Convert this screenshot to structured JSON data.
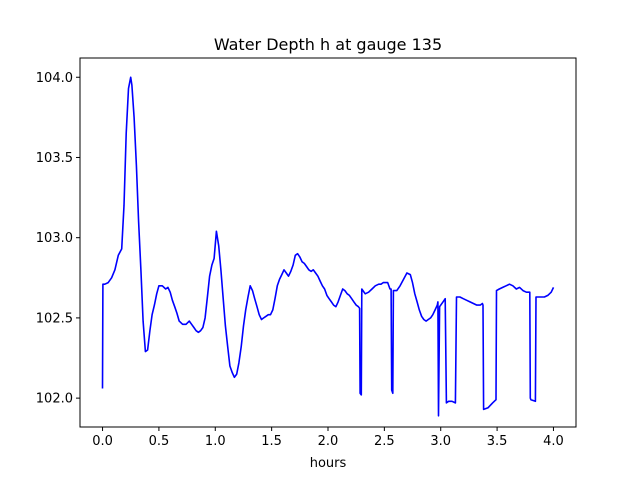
{
  "chart_data": {
    "type": "line",
    "title": "Water Depth h at gauge 135",
    "xlabel": "hours",
    "ylabel": "",
    "xlim": [
      -0.2,
      4.2
    ],
    "ylim": [
      101.82,
      104.12
    ],
    "xticks": [
      "0.0",
      "0.5",
      "1.0",
      "1.5",
      "2.0",
      "2.5",
      "3.0",
      "3.5",
      "4.0"
    ],
    "yticks": [
      "102.0",
      "102.5",
      "103.0",
      "103.5",
      "104.0"
    ],
    "grid": false,
    "colors": {
      "line": "#0000ff",
      "axes": "#000000",
      "background": "#ffffff"
    },
    "series": [
      {
        "x": [
          0.0,
          0.003,
          0.02,
          0.05,
          0.08,
          0.11,
          0.14,
          0.17,
          0.19,
          0.21,
          0.23,
          0.25,
          0.26,
          0.28,
          0.3,
          0.32,
          0.34,
          0.36,
          0.38,
          0.4,
          0.42,
          0.44,
          0.46,
          0.48,
          0.5,
          0.53,
          0.56,
          0.58,
          0.6,
          0.62,
          0.64,
          0.66,
          0.68,
          0.71,
          0.74,
          0.77,
          0.79,
          0.81,
          0.83,
          0.85,
          0.87,
          0.89,
          0.91,
          0.93,
          0.95,
          0.97,
          0.99,
          1.01,
          1.03,
          1.05,
          1.07,
          1.09,
          1.11,
          1.13,
          1.15,
          1.17,
          1.19,
          1.21,
          1.23,
          1.25,
          1.27,
          1.29,
          1.31,
          1.33,
          1.35,
          1.37,
          1.39,
          1.41,
          1.43,
          1.45,
          1.47,
          1.49,
          1.51,
          1.53,
          1.55,
          1.57,
          1.59,
          1.61,
          1.63,
          1.65,
          1.67,
          1.69,
          1.71,
          1.73,
          1.75,
          1.77,
          1.79,
          1.81,
          1.83,
          1.85,
          1.87,
          1.89,
          1.91,
          1.93,
          1.95,
          1.97,
          1.99,
          2.01,
          2.03,
          2.05,
          2.07,
          2.09,
          2.11,
          2.13,
          2.15,
          2.17,
          2.19,
          2.21,
          2.23,
          2.25,
          2.27,
          2.28,
          2.285,
          2.295,
          2.3,
          2.33,
          2.36,
          2.39,
          2.42,
          2.45,
          2.47,
          2.49,
          2.51,
          2.53,
          2.55,
          2.56,
          2.565,
          2.575,
          2.58,
          2.61,
          2.64,
          2.67,
          2.7,
          2.73,
          2.75,
          2.77,
          2.79,
          2.81,
          2.83,
          2.85,
          2.87,
          2.89,
          2.91,
          2.93,
          2.95,
          2.97,
          2.975,
          2.98,
          2.99,
          3.02,
          3.04,
          3.05,
          3.07,
          3.1,
          3.13,
          3.14,
          3.145,
          3.17,
          3.2,
          3.23,
          3.26,
          3.29,
          3.32,
          3.35,
          3.37,
          3.375,
          3.38,
          3.42,
          3.46,
          3.49,
          3.495,
          3.52,
          3.55,
          3.58,
          3.61,
          3.64,
          3.67,
          3.7,
          3.73,
          3.76,
          3.79,
          3.795,
          3.8,
          3.84,
          3.845,
          3.86,
          3.89,
          3.92,
          3.95,
          3.98,
          4.0
        ],
        "y": [
          102.06,
          102.71,
          102.71,
          102.72,
          102.75,
          102.8,
          102.89,
          102.93,
          103.2,
          103.65,
          103.93,
          104.0,
          103.95,
          103.75,
          103.45,
          103.1,
          102.8,
          102.48,
          102.29,
          102.3,
          102.42,
          102.52,
          102.58,
          102.65,
          102.7,
          102.7,
          102.68,
          102.69,
          102.66,
          102.61,
          102.57,
          102.53,
          102.48,
          102.46,
          102.46,
          102.48,
          102.46,
          102.44,
          102.42,
          102.41,
          102.42,
          102.44,
          102.5,
          102.63,
          102.76,
          102.83,
          102.87,
          103.04,
          102.95,
          102.8,
          102.62,
          102.45,
          102.32,
          102.2,
          102.16,
          102.13,
          102.15,
          102.22,
          102.32,
          102.45,
          102.55,
          102.63,
          102.7,
          102.67,
          102.62,
          102.57,
          102.52,
          102.49,
          102.5,
          102.51,
          102.52,
          102.52,
          102.55,
          102.62,
          102.7,
          102.74,
          102.77,
          102.8,
          102.78,
          102.76,
          102.79,
          102.83,
          102.89,
          102.9,
          102.88,
          102.85,
          102.84,
          102.82,
          102.8,
          102.79,
          102.8,
          102.78,
          102.76,
          102.73,
          102.7,
          102.68,
          102.64,
          102.62,
          102.6,
          102.58,
          102.57,
          102.6,
          102.64,
          102.68,
          102.67,
          102.65,
          102.64,
          102.62,
          102.6,
          102.58,
          102.57,
          102.56,
          102.03,
          102.02,
          102.68,
          102.65,
          102.66,
          102.68,
          102.7,
          102.71,
          102.71,
          102.72,
          102.72,
          102.72,
          102.68,
          102.68,
          102.05,
          102.03,
          102.67,
          102.67,
          102.7,
          102.74,
          102.78,
          102.77,
          102.72,
          102.65,
          102.6,
          102.55,
          102.51,
          102.49,
          102.48,
          102.49,
          102.5,
          102.52,
          102.55,
          102.58,
          102.6,
          101.89,
          102.57,
          102.6,
          102.62,
          101.97,
          101.98,
          101.98,
          101.97,
          102.63,
          102.63,
          102.63,
          102.62,
          102.61,
          102.6,
          102.59,
          102.58,
          102.58,
          102.59,
          102.58,
          101.93,
          101.94,
          101.97,
          101.99,
          102.67,
          102.68,
          102.69,
          102.7,
          102.71,
          102.7,
          102.68,
          102.69,
          102.67,
          102.66,
          102.66,
          102.0,
          101.99,
          101.98,
          102.63,
          102.63,
          102.63,
          102.63,
          102.64,
          102.66,
          102.69
        ]
      }
    ]
  }
}
